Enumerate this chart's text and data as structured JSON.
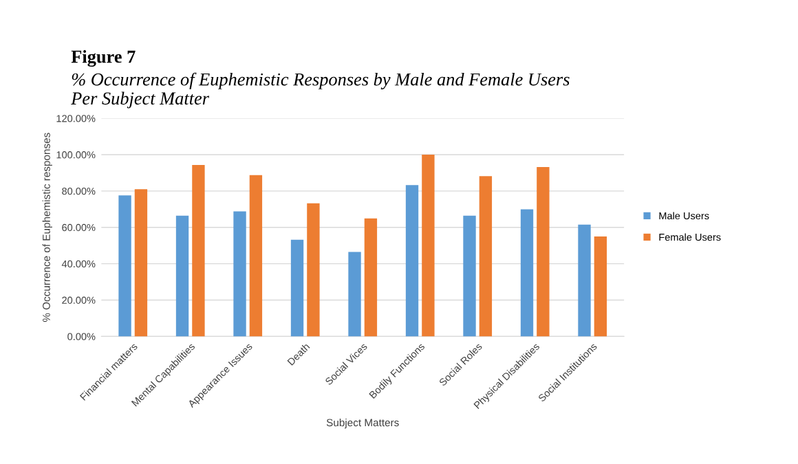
{
  "chart_data": {
    "type": "bar",
    "title": "Figure 7",
    "subtitle": "% Occurrence of Euphemistic Responses by Male and Female Users\nPer Subject Matter",
    "xlabel": "Subject Matters",
    "ylabel": "% Occurrence of Euphemistic responses",
    "categories": [
      "Financial matters",
      "Mental Capabilities",
      "Appearance Issues",
      "Death",
      "Social Vices",
      "Bodily Functions",
      "Social Roles",
      "Physical Disabilities",
      "Social Institutions"
    ],
    "series": [
      {
        "name": "Male Users",
        "color": "#5b9bd5",
        "values": [
          77.6,
          66.4,
          68.8,
          53.2,
          46.5,
          83.3,
          66.4,
          69.9,
          61.5
        ]
      },
      {
        "name": "Female Users",
        "color": "#ed7d31",
        "values": [
          81.0,
          94.3,
          88.7,
          73.2,
          64.9,
          100,
          88.2,
          93.2,
          55.0
        ]
      }
    ],
    "ylim": [
      0,
      120
    ],
    "yticks": [
      {
        "value": 0,
        "label": "0.00%"
      },
      {
        "value": 20,
        "label": "20.00%"
      },
      {
        "value": 40,
        "label": "40.00%"
      },
      {
        "value": 60,
        "label": "60.00%"
      },
      {
        "value": 80,
        "label": "80.00%"
      },
      {
        "value": 100,
        "label": "100.00%"
      },
      {
        "value": 120,
        "label": "120.00%"
      }
    ],
    "grid": "y",
    "legend": "right"
  }
}
